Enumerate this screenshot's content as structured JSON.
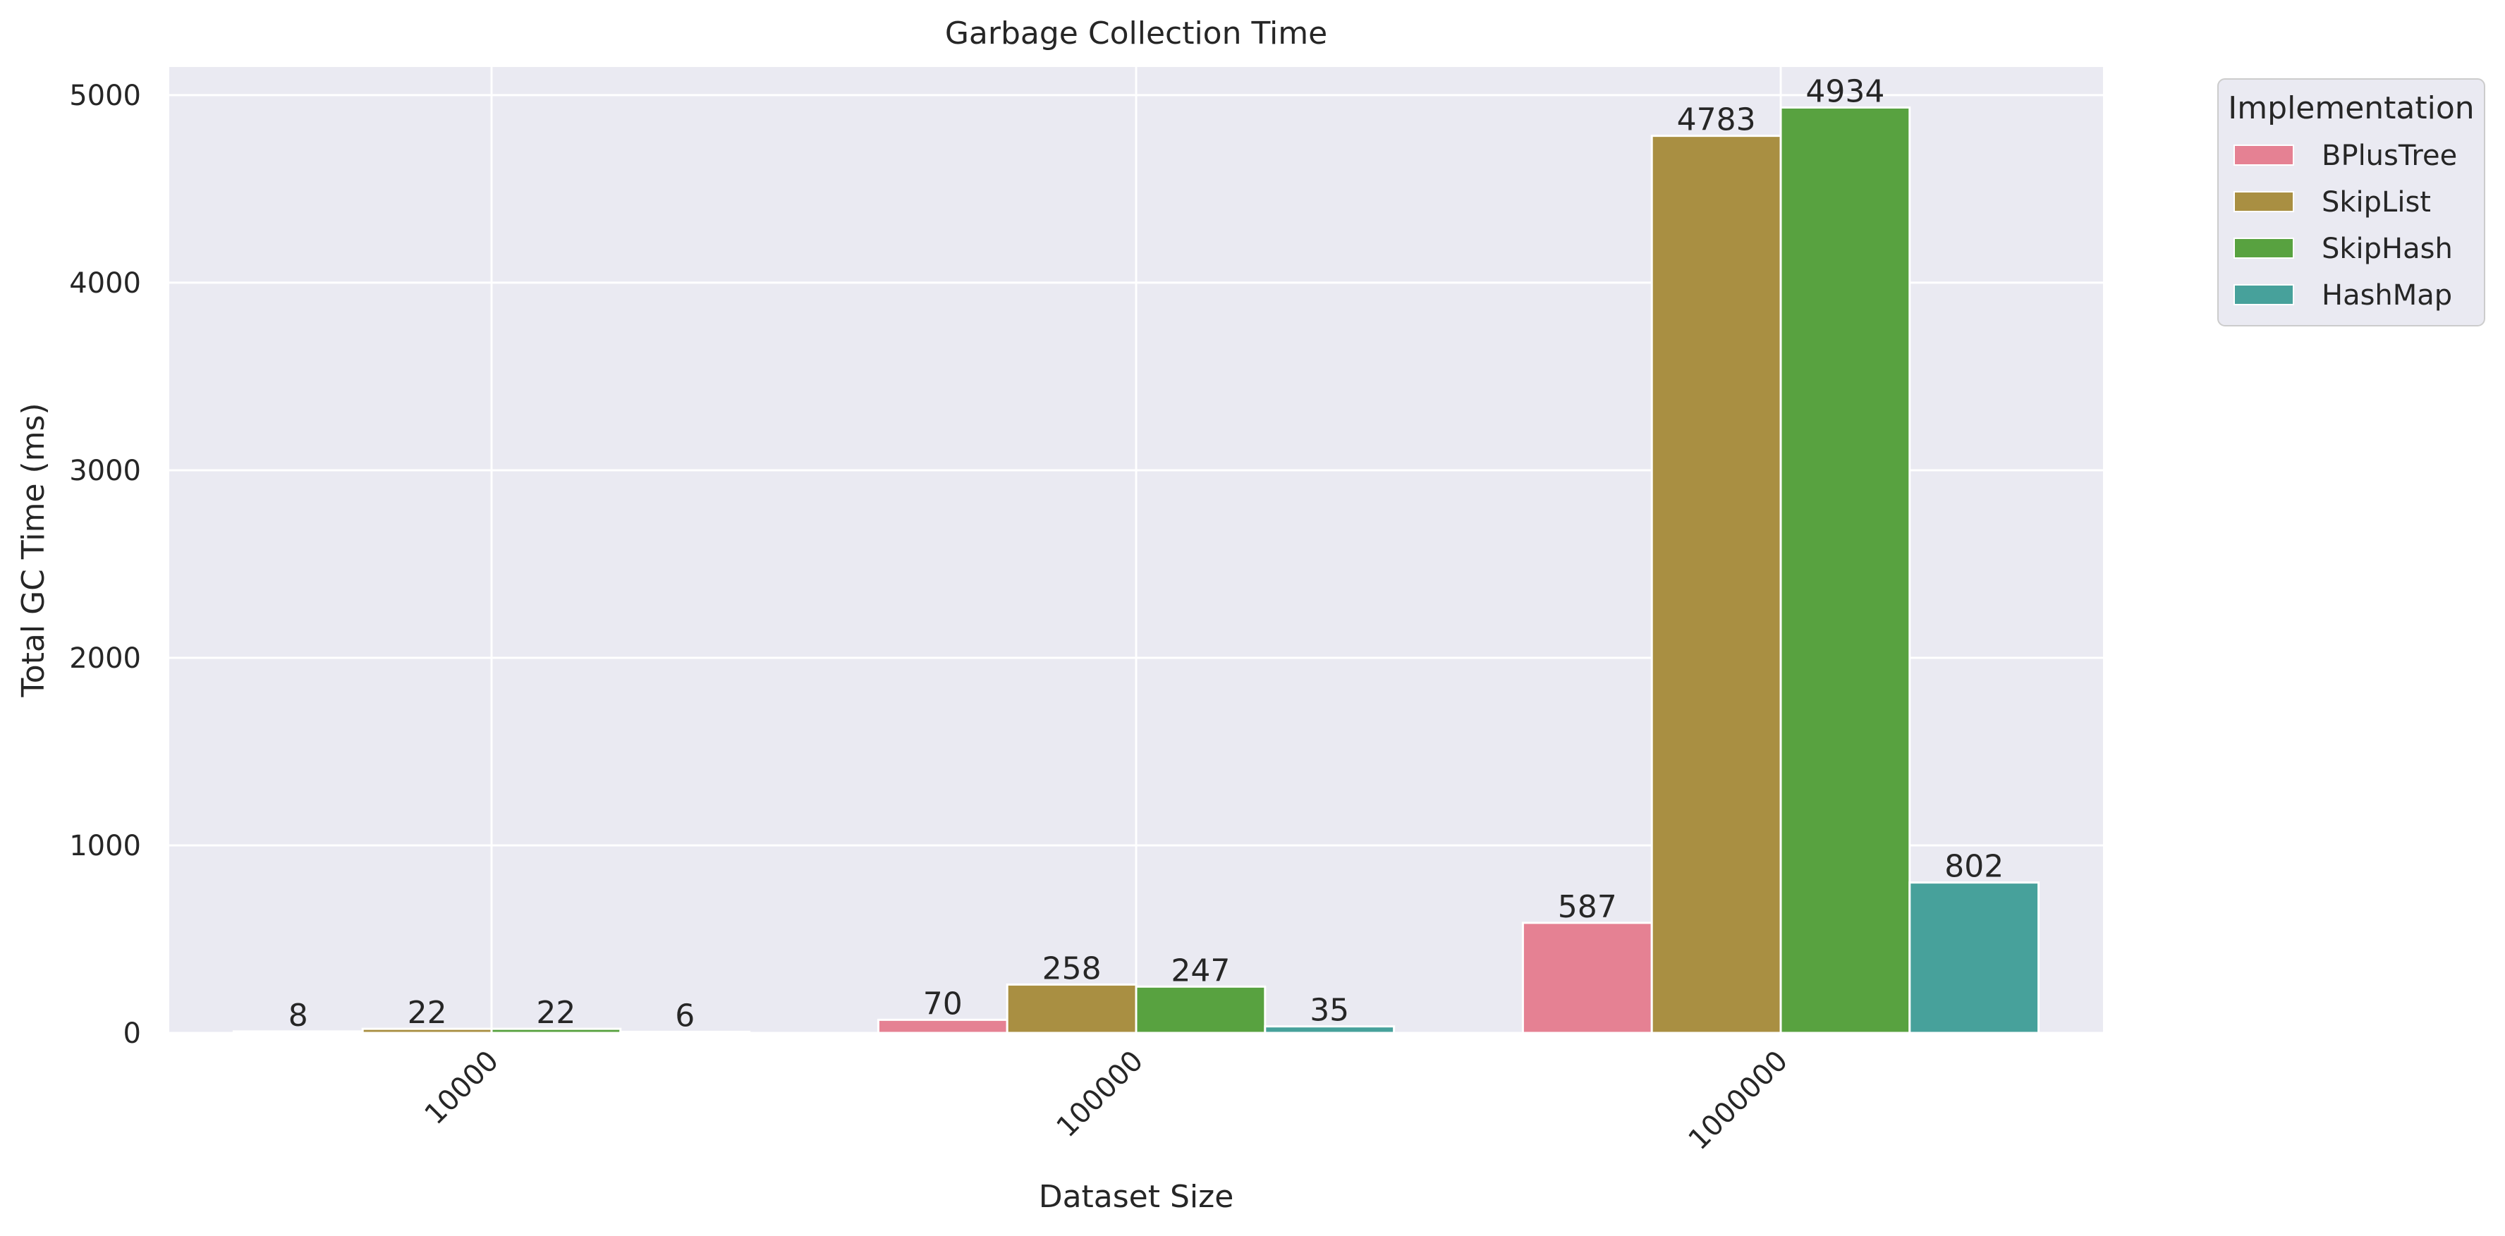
{
  "chart_data": {
    "type": "bar",
    "title": "Garbage Collection Time",
    "xlabel": "Dataset Size",
    "ylabel": "Total GC Time (ms)",
    "categories": [
      "10000",
      "100000",
      "1000000"
    ],
    "yticks": [
      0,
      1000,
      2000,
      3000,
      4000,
      5000
    ],
    "ylim": [
      0,
      5150
    ],
    "grid": true,
    "legend": {
      "title": "Implementation",
      "position": "outside-top-right"
    },
    "series": [
      {
        "name": "BPlusTree",
        "color": "#e58193",
        "values": [
          8,
          70,
          587
        ]
      },
      {
        "name": "SkipList",
        "color": "#a98f42",
        "values": [
          22,
          258,
          4783
        ]
      },
      {
        "name": "SkipHash",
        "color": "#58a240",
        "values": [
          22,
          247,
          4934
        ]
      },
      {
        "name": "HashMap",
        "color": "#47a19b",
        "values": [
          6,
          35,
          802
        ]
      }
    ],
    "colors": {
      "plot_background": "#eaeaf2",
      "grid": "#ffffff",
      "text": "#262626"
    }
  }
}
